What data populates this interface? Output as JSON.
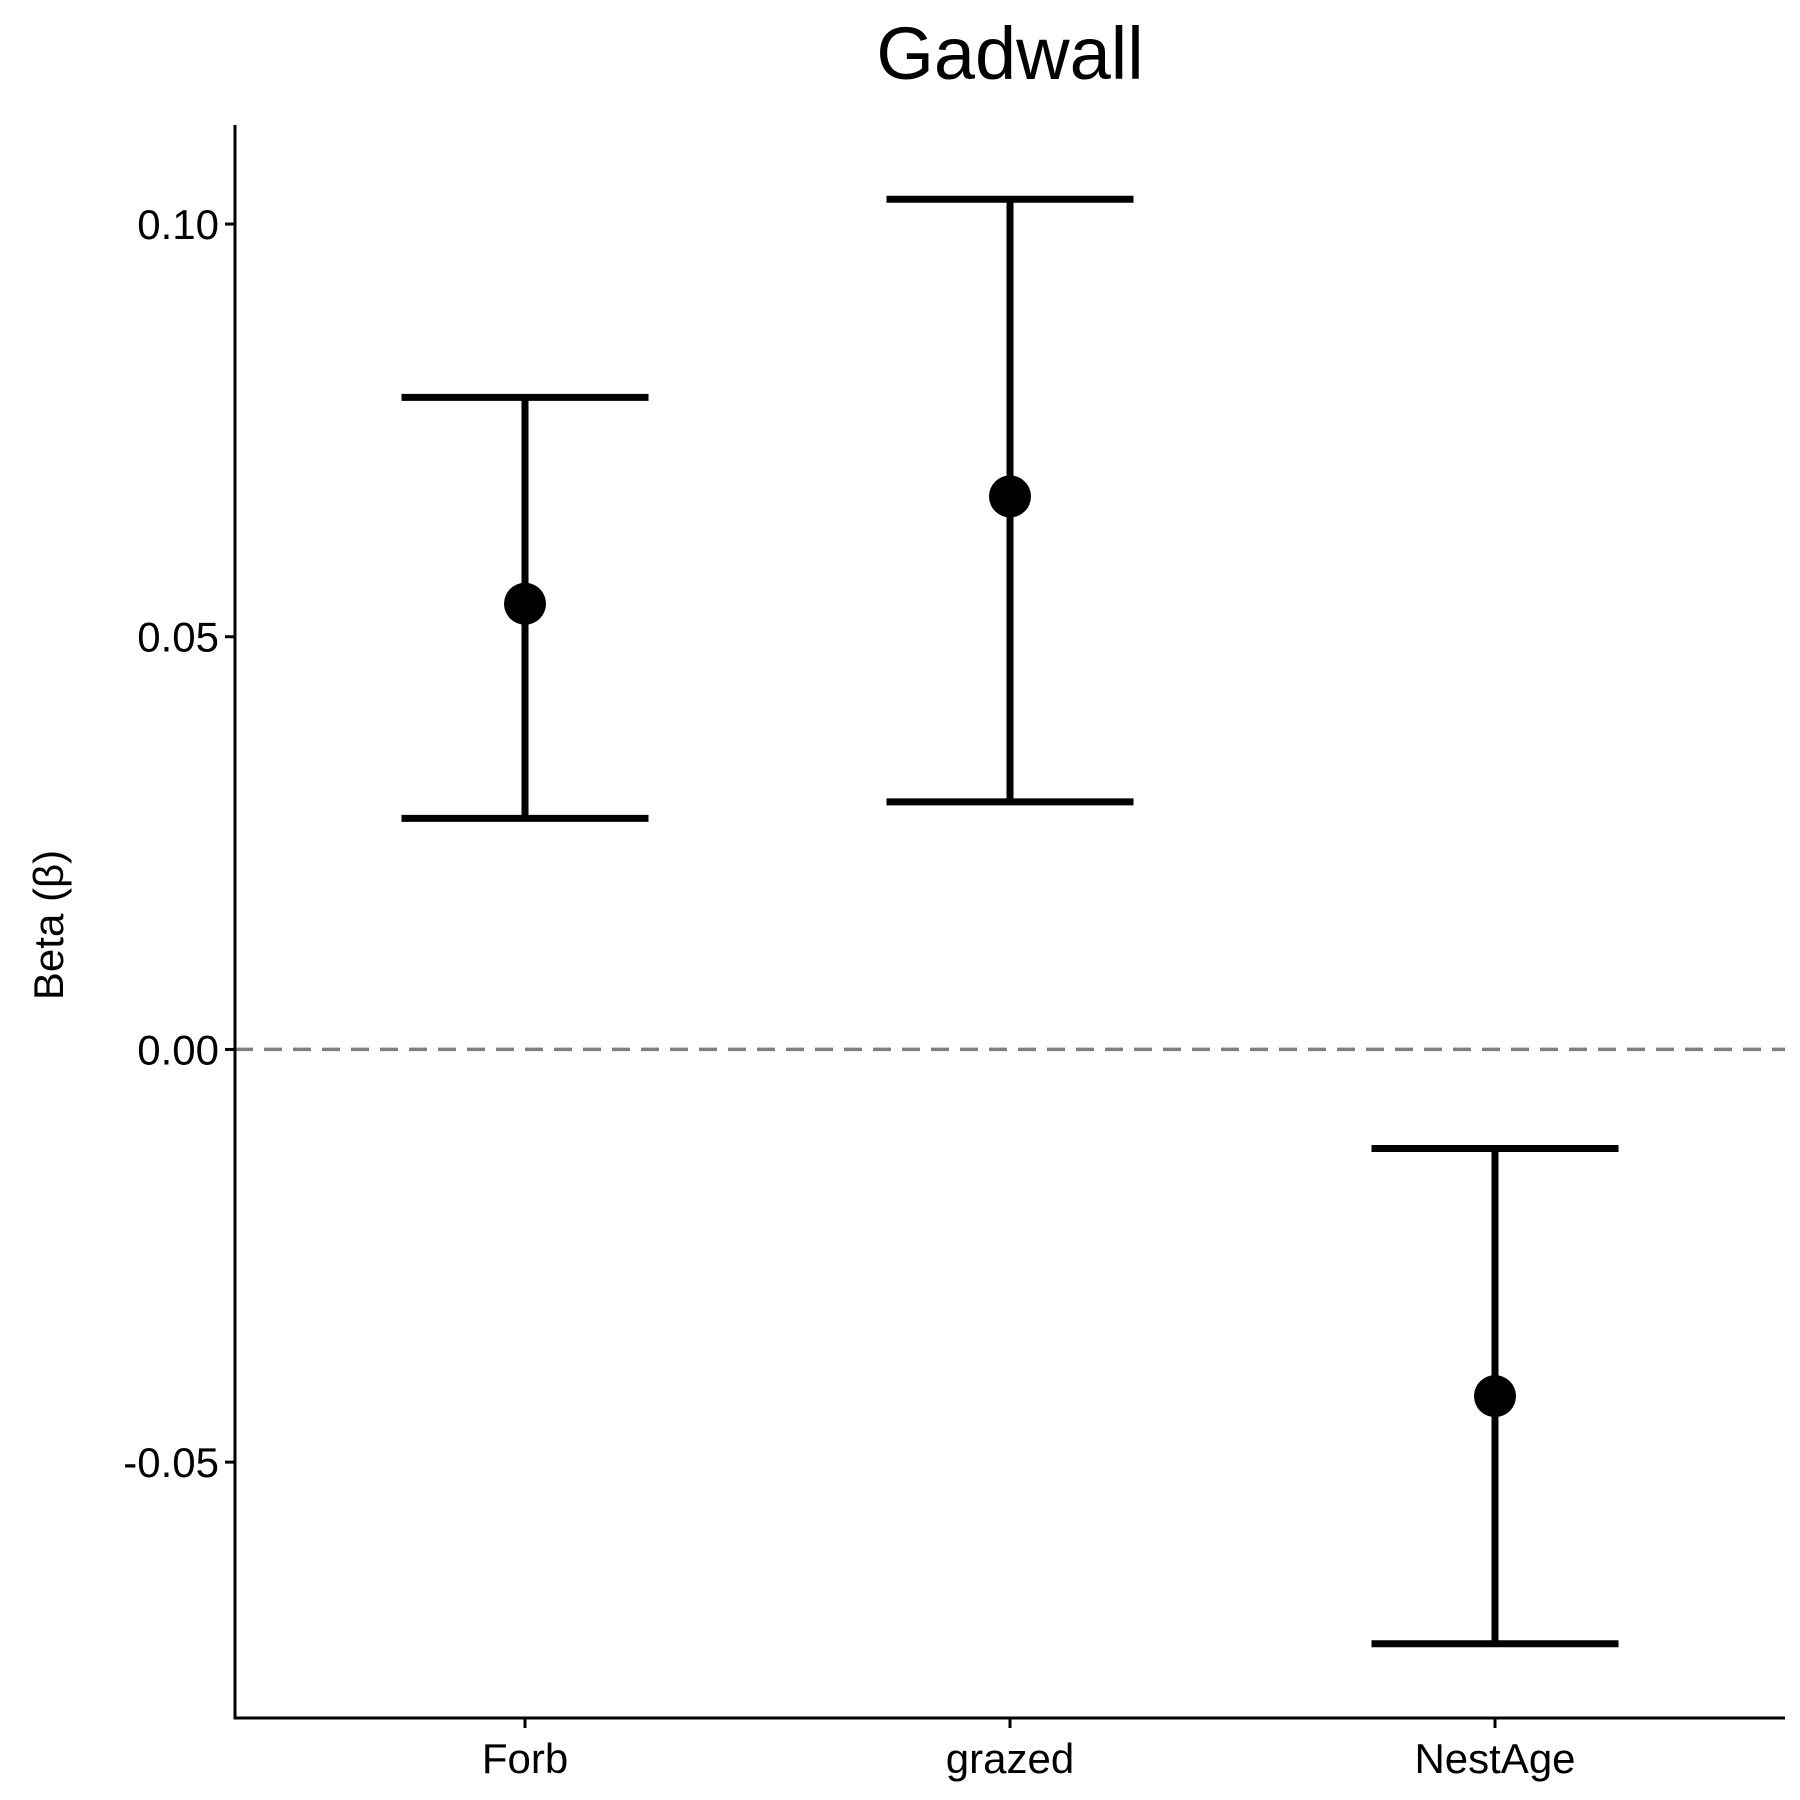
{
  "chart_data": {
    "type": "scatter",
    "title": "Gadwall",
    "xlabel": "",
    "ylabel": "Beta (β)",
    "categories": [
      "Forb",
      "grazed",
      "NestAge"
    ],
    "series": [
      {
        "estimate": [
          0.054,
          0.067,
          -0.042
        ],
        "lower": [
          0.028,
          0.03,
          -0.072
        ],
        "upper": [
          0.079,
          0.103,
          -0.012
        ]
      }
    ],
    "yticks": [
      -0.05,
      0.0,
      0.05,
      0.1
    ],
    "ytick_labels": [
      "-0.05",
      "0.00",
      "0.05",
      "0.10"
    ],
    "ylim": [
      -0.081,
      0.112
    ],
    "reference_line": 0,
    "grid": false,
    "colors": {
      "points": "#000000",
      "reference_line": "#808080",
      "axes": "#000000"
    }
  }
}
